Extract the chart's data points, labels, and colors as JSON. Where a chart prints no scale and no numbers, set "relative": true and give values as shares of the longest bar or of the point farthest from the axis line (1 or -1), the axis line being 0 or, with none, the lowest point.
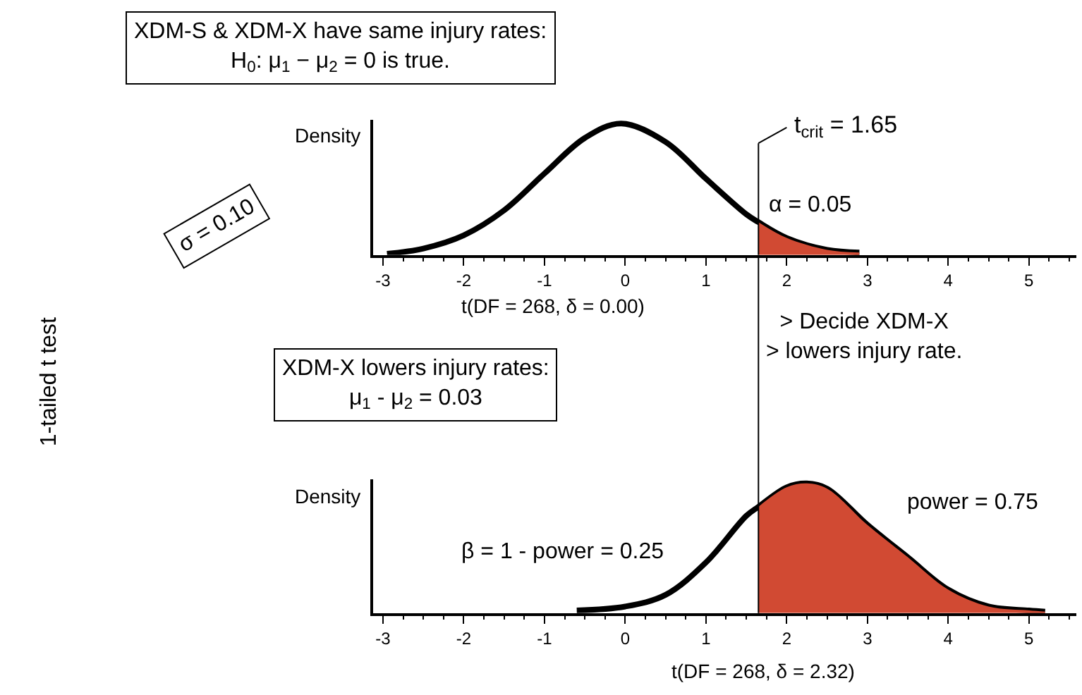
{
  "chart_data": [
    {
      "type": "line",
      "relative": true,
      "ylabel": "Density",
      "xlabel": "t(DF = 268, δ = 0.00)",
      "xlim": [
        -3.12,
        5.59
      ],
      "xticks": [
        -3,
        -2,
        -1,
        0,
        1,
        2,
        3,
        4,
        5
      ],
      "marker": "none",
      "line_style": "solid",
      "series": [
        {
          "type": "line",
          "color": "#000000",
          "x": [
            -2.95,
            -2.5,
            -2,
            -1.5,
            -1,
            -0.5,
            -0.05,
            0.5,
            1,
            1.5,
            1.65,
            2,
            2.5,
            2.9
          ],
          "values": [
            0.01,
            0.05,
            0.15,
            0.34,
            0.62,
            0.89,
            1,
            0.86,
            0.58,
            0.31,
            0.25,
            0.13,
            0.04,
            0.02
          ]
        },
        {
          "type": "area",
          "color": "#d14a33",
          "x": [
            1.65,
            2,
            2.5,
            2.9
          ],
          "values": [
            0.25,
            0.13,
            0.04,
            0.02
          ]
        }
      ],
      "ref_lines": [
        {
          "axis": "x",
          "value": 1.65,
          "label": "t$_{crit}$ = 1.65",
          "color": "#000000"
        }
      ],
      "annotations": [
        "XDM-S & XDM-X have same injury rates:\nH$_{0}$: μ$_{1}$ − μ$_{2}$ = 0 is true.",
        "α = 0.05",
        "σ = 0.10",
        "1-tailed t test",
        "> Decide XDM-X\n> lowers injury rate."
      ]
    },
    {
      "type": "line",
      "relative": true,
      "ylabel": "Density",
      "xlabel": "t(DF = 268, δ = 2.32)",
      "xlim": [
        -3.12,
        5.59
      ],
      "xticks": [
        -3,
        -2,
        -1,
        0,
        1,
        2,
        3,
        4,
        5
      ],
      "marker": "none",
      "line_style": "solid",
      "series": [
        {
          "type": "line",
          "color": "#000000",
          "x": [
            -0.6,
            0,
            0.5,
            1,
            1.5,
            1.65,
            2,
            2.25,
            2.5,
            3,
            3.5,
            4,
            4.5,
            5,
            5.2
          ],
          "values": [
            0.02,
            0.05,
            0.14,
            0.39,
            0.75,
            0.82,
            0.97,
            1,
            0.96,
            0.68,
            0.43,
            0.18,
            0.05,
            0.02,
            0.01
          ]
        },
        {
          "type": "area",
          "color": "#d14a33",
          "x": [
            1.65,
            2,
            2.25,
            2.5,
            3,
            3.5,
            4,
            4.5,
            5,
            5.2
          ],
          "values": [
            0.82,
            0.97,
            1,
            0.96,
            0.68,
            0.43,
            0.18,
            0.05,
            0.02,
            0.01
          ]
        }
      ],
      "ref_lines": [
        {
          "axis": "x",
          "value": 1.65,
          "color": "#000000"
        }
      ],
      "annotations": [
        "XDM-X lowers injury rates:\nμ$_{1}$ - μ$_{2}$ = 0.03",
        "β = 1 - power = 0.25",
        "power = 0.75"
      ]
    }
  ]
}
